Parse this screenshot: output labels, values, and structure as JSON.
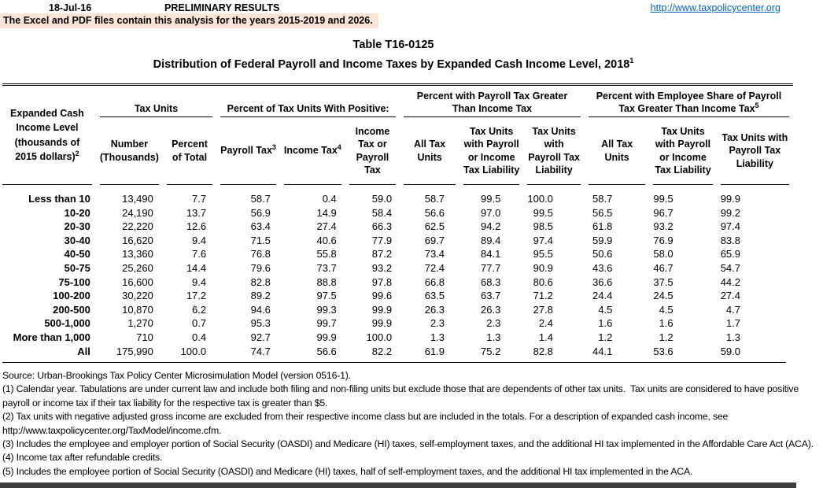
{
  "colors": {
    "banner_bg": "#fce4d6",
    "link_blue": "#0563c1",
    "text": "#000000",
    "bottom_bar": "#3f3f3f"
  },
  "header": {
    "date": "18-Jul-16",
    "preliminary": "PRELIMINARY RESULTS",
    "site_link": "http://www.taxpolicycenter.org",
    "banner": "The Excel and PDF files contain this analysis for the years 2015-2019 and 2026."
  },
  "title": {
    "table_number": "Table T16-0125",
    "main": "Distribution of Federal Payroll and Income Taxes by Expanded Cash Income Level, 2018",
    "superscript": "1"
  },
  "table": {
    "stub": {
      "label": "Expanded Cash Income Level (thousands of 2015 dollars)",
      "sup": "2"
    },
    "groups": [
      {
        "label": "Tax Units",
        "sup": ""
      },
      {
        "label": "Percent of Tax Units With Positive:",
        "sup": ""
      },
      {
        "label": "Percent with Payroll Tax Greater Than Income Tax",
        "sup": ""
      },
      {
        "label": "Percent with Employee Share of Payroll Tax Greater Than Income Tax",
        "sup": "5"
      }
    ],
    "columns": [
      {
        "label": "Number (Thousands)",
        "sup": ""
      },
      {
        "label": "Percent of Total",
        "sup": ""
      },
      {
        "label": "Payroll Tax",
        "sup": "3"
      },
      {
        "label": "Income Tax",
        "sup": "4"
      },
      {
        "label": "Income Tax or Payroll Tax",
        "sup": ""
      },
      {
        "label": "All Tax Units",
        "sup": ""
      },
      {
        "label": "Tax Units with Payroll or Income Tax Liability",
        "sup": ""
      },
      {
        "label": "Tax Units with Payroll Tax Liability",
        "sup": ""
      },
      {
        "label": "All Tax Units",
        "sup": ""
      },
      {
        "label": "Tax Units with Payroll or Income Tax Liability",
        "sup": ""
      },
      {
        "label": "Tax Units with Payroll Tax Liability",
        "sup": ""
      }
    ],
    "rows": [
      {
        "label": "Less than 10",
        "values": [
          "13,490",
          "7.7",
          "58.7",
          "0.4",
          "59.0",
          "58.7",
          "99.5",
          "100.0",
          "58.7",
          "99.5",
          "99.9"
        ]
      },
      {
        "label": "10-20",
        "values": [
          "24,190",
          "13.7",
          "56.9",
          "14.9",
          "58.4",
          "56.6",
          "97.0",
          "99.5",
          "56.5",
          "96.7",
          "99.2"
        ]
      },
      {
        "label": "20-30",
        "values": [
          "22,220",
          "12.6",
          "63.4",
          "27.4",
          "66.3",
          "62.5",
          "94.2",
          "98.5",
          "61.8",
          "93.2",
          "97.4"
        ]
      },
      {
        "label": "30-40",
        "values": [
          "16,620",
          "9.4",
          "71.5",
          "40.6",
          "77.9",
          "69.7",
          "89.4",
          "97.4",
          "59.9",
          "76.9",
          "83.8"
        ]
      },
      {
        "label": "40-50",
        "values": [
          "13,360",
          "7.6",
          "76.8",
          "55.8",
          "87.2",
          "73.4",
          "84.1",
          "95.5",
          "50.6",
          "58.0",
          "65.9"
        ]
      },
      {
        "label": "50-75",
        "values": [
          "25,260",
          "14.4",
          "79.6",
          "73.7",
          "93.2",
          "72.4",
          "77.7",
          "90.9",
          "43.6",
          "46.7",
          "54.7"
        ]
      },
      {
        "label": "75-100",
        "values": [
          "16,600",
          "9.4",
          "82.8",
          "88.8",
          "97.8",
          "66.8",
          "68.3",
          "80.6",
          "36.6",
          "37.5",
          "44.2"
        ]
      },
      {
        "label": "100-200",
        "values": [
          "30,220",
          "17.2",
          "89.2",
          "97.5",
          "99.6",
          "63.5",
          "63.7",
          "71.2",
          "24.4",
          "24.5",
          "27.4"
        ]
      },
      {
        "label": "200-500",
        "values": [
          "10,870",
          "6.2",
          "94.6",
          "99.3",
          "99.9",
          "26.3",
          "26.3",
          "27.8",
          "4.5",
          "4.5",
          "4.7"
        ]
      },
      {
        "label": "500-1,000",
        "values": [
          "1,270",
          "0.7",
          "95.3",
          "99.7",
          "99.9",
          "2.3",
          "2.3",
          "2.4",
          "1.6",
          "1.6",
          "1.7"
        ]
      },
      {
        "label": "More than 1,000",
        "values": [
          "710",
          "0.4",
          "92.7",
          "99.9",
          "100.0",
          "1.3",
          "1.3",
          "1.4",
          "1.2",
          "1.2",
          "1.3"
        ]
      },
      {
        "label": "All",
        "values": [
          "175,990",
          "100.0",
          "74.7",
          "56.6",
          "82.2",
          "61.9",
          "75.2",
          "82.8",
          "44.1",
          "53.6",
          "59.0"
        ]
      }
    ]
  },
  "footnotes": [
    "Source: Urban-Brookings Tax Policy Center Microsimulation Model (version 0516-1).",
    "(1) Calendar year. Tabulations are under current law and include both filing and non-filing units but exclude those that are dependents of other tax units.  Tax units are considered to have positive payroll or income tax if their tax liability for the respective tax is greater than $5.",
    "(2) Tax units with negative adjusted gross income are excluded from their respective income class but are included in the totals. For a description of expanded cash income, see http://www.taxpolicycenter.org/TaxModel/income.cfm.",
    "(3) Includes the employee and employer portion of Social Security (OASDI) and Medicare (HI) taxes, self-employment taxes, and the additional HI tax implemented in the Affordable Care Act (ACA).",
    "(4) Income tax after refundable credits.",
    "(5) Includes the employee portion of Social Security (OASDI) and Medicare (HI) taxes, half of self-employment taxes, and the additional HI tax implemented in the ACA."
  ]
}
